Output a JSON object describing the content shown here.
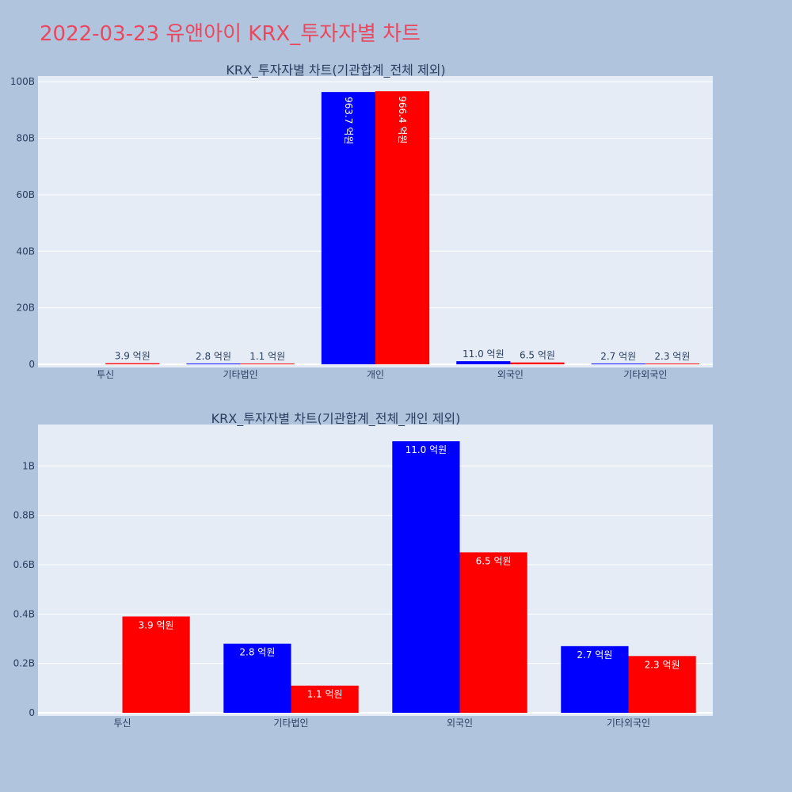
{
  "title": "2022-03-23 유앤아이 KRX_투자자별 차트",
  "colors": {
    "series1": "#0000ff",
    "series2": "#ff0000",
    "plot_bg": "#e5ecf6",
    "page_bg": "#b0c4de",
    "title": "#e8495f"
  },
  "chart_data": [
    {
      "type": "bar",
      "title": "KRX_투자자별 차트(기관합계_전체 제외)",
      "categories": [
        "투신",
        "기타법인",
        "개인",
        "외국인",
        "기타외국인"
      ],
      "series": [
        {
          "values": [
            0,
            0.28,
            96.37,
            1.1,
            0.27
          ],
          "labels": [
            "",
            "2.8 억원",
            "963.7 억원",
            "11.0 억원",
            "2.7 억원"
          ]
        },
        {
          "values": [
            0.39,
            0.11,
            96.64,
            0.65,
            0.23
          ],
          "labels": [
            "3.9 억원",
            "1.1 억원",
            "966.4 억원",
            "6.5 억원",
            "2.3 억원"
          ]
        }
      ],
      "unit": "B",
      "yticks": [
        0,
        20,
        40,
        60,
        80,
        100
      ],
      "ytick_labels": [
        "0",
        "20B",
        "40B",
        "60B",
        "80B",
        "100B"
      ],
      "ylim": [
        0,
        100.9
      ],
      "grid": true
    },
    {
      "type": "bar",
      "title": "KRX_투자자별 차트(기관합계_전체_개인 제외)",
      "categories": [
        "투신",
        "기타법인",
        "외국인",
        "기타외국인"
      ],
      "series": [
        {
          "values": [
            0,
            0.28,
            1.1,
            0.27
          ],
          "labels": [
            "",
            "2.8 억원",
            "11.0 억원",
            "2.7 억원"
          ]
        },
        {
          "values": [
            0.39,
            0.11,
            0.65,
            0.23
          ],
          "labels": [
            "3.9 억원",
            "1.1 억원",
            "6.5 억원",
            "2.3 억원"
          ]
        }
      ],
      "yticks": [
        0,
        0.2,
        0.4,
        0.6,
        0.8,
        1
      ],
      "ytick_labels": [
        "0",
        "0.2B",
        "0.4B",
        "0.6B",
        "0.8B",
        "1B"
      ],
      "ylim": [
        0,
        1.155
      ],
      "grid": true
    }
  ]
}
